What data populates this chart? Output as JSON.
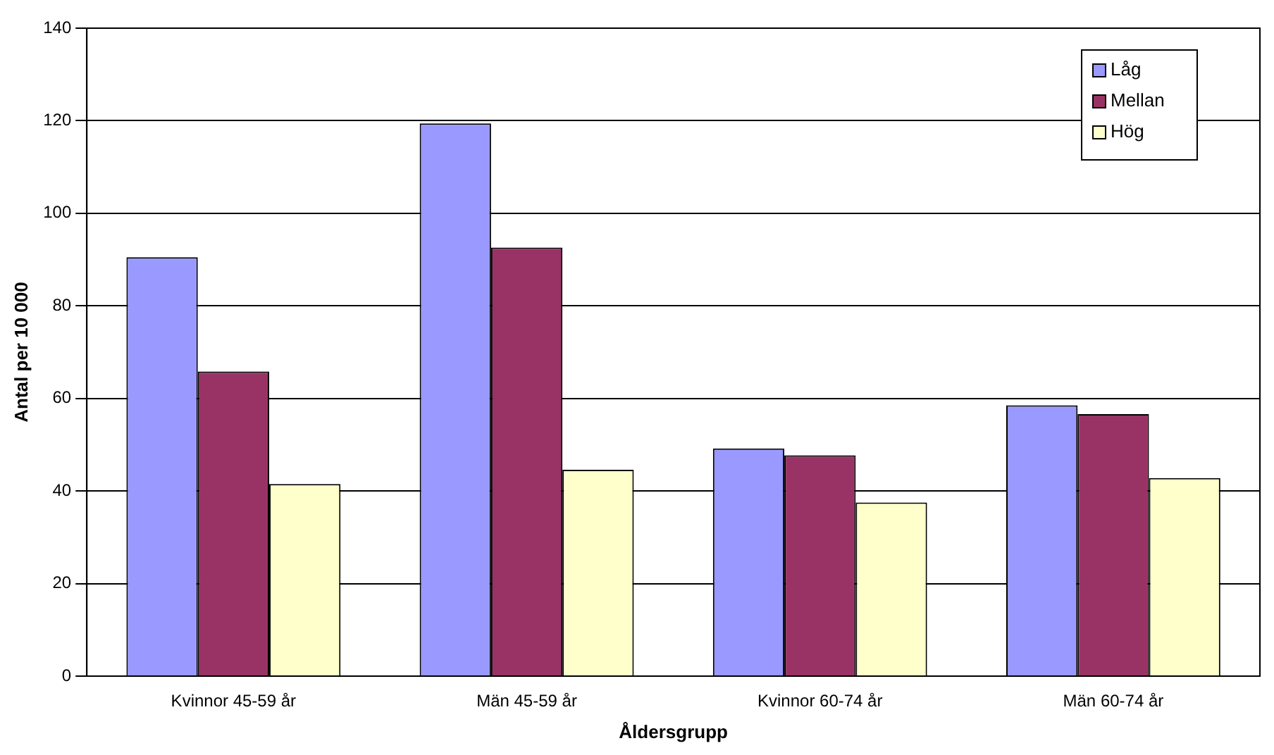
{
  "chart_data": {
    "type": "bar",
    "xlabel": "Åldersgrupp",
    "ylabel": "Antal per 10 000",
    "categories": [
      "Kvinnor 45-59 år",
      "Män 45-59 år",
      "Kvinnor 60-74 år",
      "Män 60-74 år"
    ],
    "series": [
      {
        "name": "Låg",
        "color": "#9999ff",
        "values": [
          90.5,
          119.4,
          49.2,
          58.5
        ]
      },
      {
        "name": "Mellan",
        "color": "#993366",
        "values": [
          65.8,
          92.6,
          47.7,
          56.6
        ]
      },
      {
        "name": "Hög",
        "color": "#ffffcc",
        "values": [
          41.5,
          44.6,
          37.5,
          42.8
        ]
      }
    ],
    "ylim": [
      0,
      140
    ],
    "yticks": [
      0,
      20,
      40,
      60,
      80,
      100,
      120,
      140
    ],
    "grid": "y",
    "legend": "top right"
  }
}
